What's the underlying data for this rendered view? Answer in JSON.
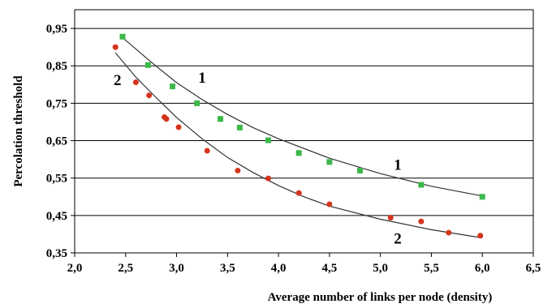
{
  "chart_data": {
    "type": "scatter",
    "title": "",
    "xlabel": "Average number of links per node (density)",
    "ylabel": "Percolation threshold",
    "xlim": [
      2.0,
      6.5
    ],
    "ylim": [
      0.35,
      1.0
    ],
    "x_ticks": [
      "2,0",
      "2,5",
      "3,0",
      "3,5",
      "4,0",
      "4,5",
      "5,0",
      "5,5",
      "6,0",
      "6,5"
    ],
    "y_ticks": [
      "0,35",
      "0,45",
      "0,55",
      "0,65",
      "0,75",
      "0,85",
      "0,95"
    ],
    "grid": "horizontal",
    "legend": "none",
    "series": [
      {
        "name": "1",
        "color": "#3cb84a",
        "marker": "square",
        "points": [
          [
            2.47,
            0.928
          ],
          [
            2.72,
            0.852
          ],
          [
            2.96,
            0.795
          ],
          [
            3.2,
            0.75
          ],
          [
            3.43,
            0.708
          ],
          [
            3.62,
            0.685
          ],
          [
            3.9,
            0.651
          ],
          [
            4.2,
            0.617
          ],
          [
            4.5,
            0.593
          ],
          [
            4.8,
            0.57
          ],
          [
            5.4,
            0.532
          ],
          [
            6.0,
            0.5
          ]
        ],
        "fit": [
          [
            2.45,
            0.93
          ],
          [
            2.75,
            0.86
          ],
          [
            3.0,
            0.805
          ],
          [
            3.25,
            0.76
          ],
          [
            3.5,
            0.72
          ],
          [
            3.75,
            0.685
          ],
          [
            4.0,
            0.655
          ],
          [
            4.5,
            0.603
          ],
          [
            5.0,
            0.562
          ],
          [
            5.5,
            0.528
          ],
          [
            6.0,
            0.502
          ]
        ]
      },
      {
        "name": "2",
        "color": "#d4341d",
        "marker": "circle",
        "points": [
          [
            2.4,
            0.9
          ],
          [
            2.6,
            0.806
          ],
          [
            2.73,
            0.771
          ],
          [
            2.88,
            0.713
          ],
          [
            2.9,
            0.708
          ],
          [
            3.02,
            0.686
          ],
          [
            3.3,
            0.623
          ],
          [
            3.6,
            0.57
          ],
          [
            3.9,
            0.549
          ],
          [
            4.2,
            0.51
          ],
          [
            4.5,
            0.48
          ],
          [
            5.1,
            0.444
          ],
          [
            5.4,
            0.434
          ],
          [
            5.67,
            0.404
          ],
          [
            5.98,
            0.396
          ]
        ],
        "fit": [
          [
            2.4,
            0.885
          ],
          [
            2.6,
            0.82
          ],
          [
            2.8,
            0.765
          ],
          [
            3.0,
            0.712
          ],
          [
            3.25,
            0.655
          ],
          [
            3.5,
            0.605
          ],
          [
            3.75,
            0.565
          ],
          [
            4.0,
            0.53
          ],
          [
            4.25,
            0.5
          ],
          [
            4.5,
            0.475
          ],
          [
            5.0,
            0.44
          ],
          [
            5.5,
            0.412
          ],
          [
            6.0,
            0.39
          ]
        ]
      }
    ]
  }
}
